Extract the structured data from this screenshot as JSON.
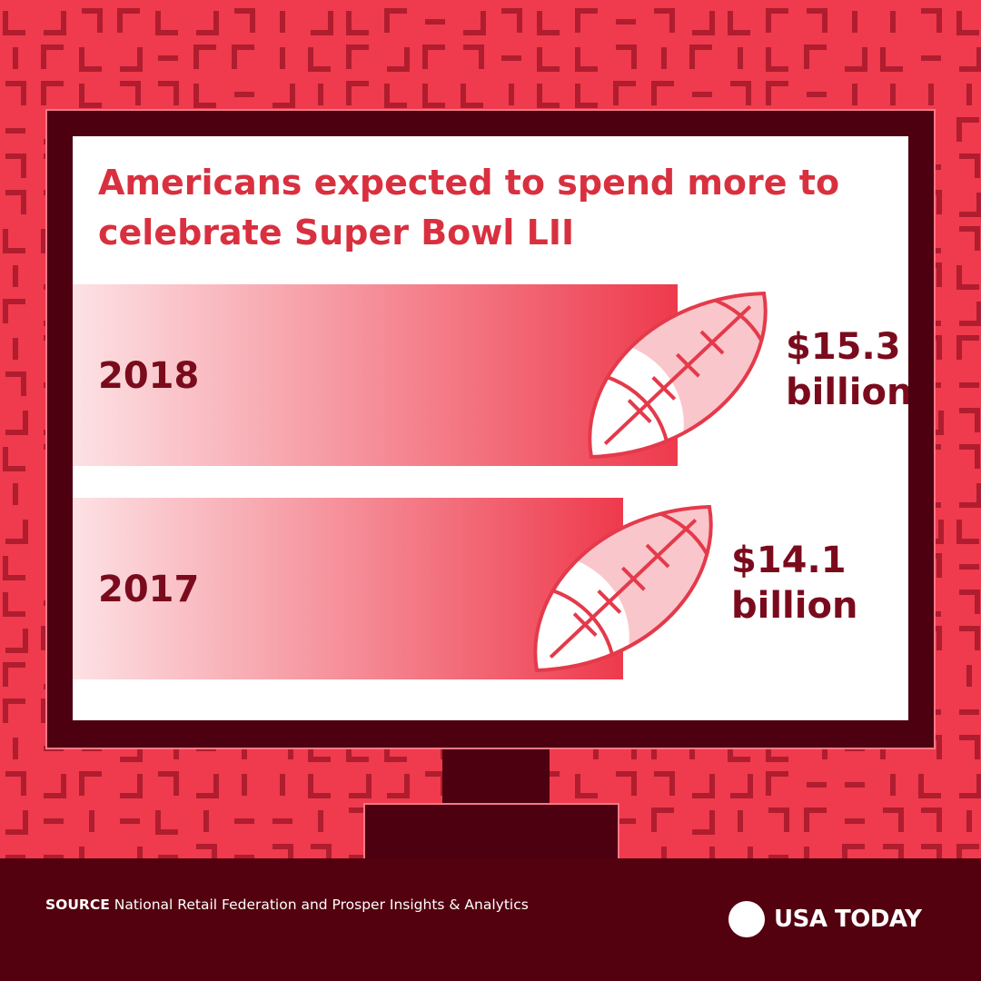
{
  "title": "Americans expected to spend more to celebrate Super Bowl LII",
  "chart_data": {
    "type": "bar",
    "orientation": "horizontal",
    "title": "Americans expected to spend more to celebrate Super Bowl LII",
    "categories": [
      "2018",
      "2017"
    ],
    "values": [
      15.3,
      14.1
    ],
    "value_labels": [
      {
        "amount": "$15.3",
        "unit": "billion"
      },
      {
        "amount": "$14.1",
        "unit": "billion"
      }
    ],
    "units": "billion dollars",
    "marker": "football-icon",
    "grid": false,
    "legend": "none"
  },
  "footer": {
    "source_tag": "SOURCE",
    "source_text": " National Retail Federation and Prosper Insights & Analytics",
    "brand": "USA TODAY"
  },
  "colors": {
    "background": "#ef3b4d",
    "pattern": "#b01d2f",
    "frame": "#4d0010",
    "title": "#d9303f",
    "labels": "#7a0b1d",
    "bar": "#ee3a4c",
    "football_fill": "#f9c6cb",
    "football_line": "#e43a4b",
    "footer": "#53000f"
  }
}
